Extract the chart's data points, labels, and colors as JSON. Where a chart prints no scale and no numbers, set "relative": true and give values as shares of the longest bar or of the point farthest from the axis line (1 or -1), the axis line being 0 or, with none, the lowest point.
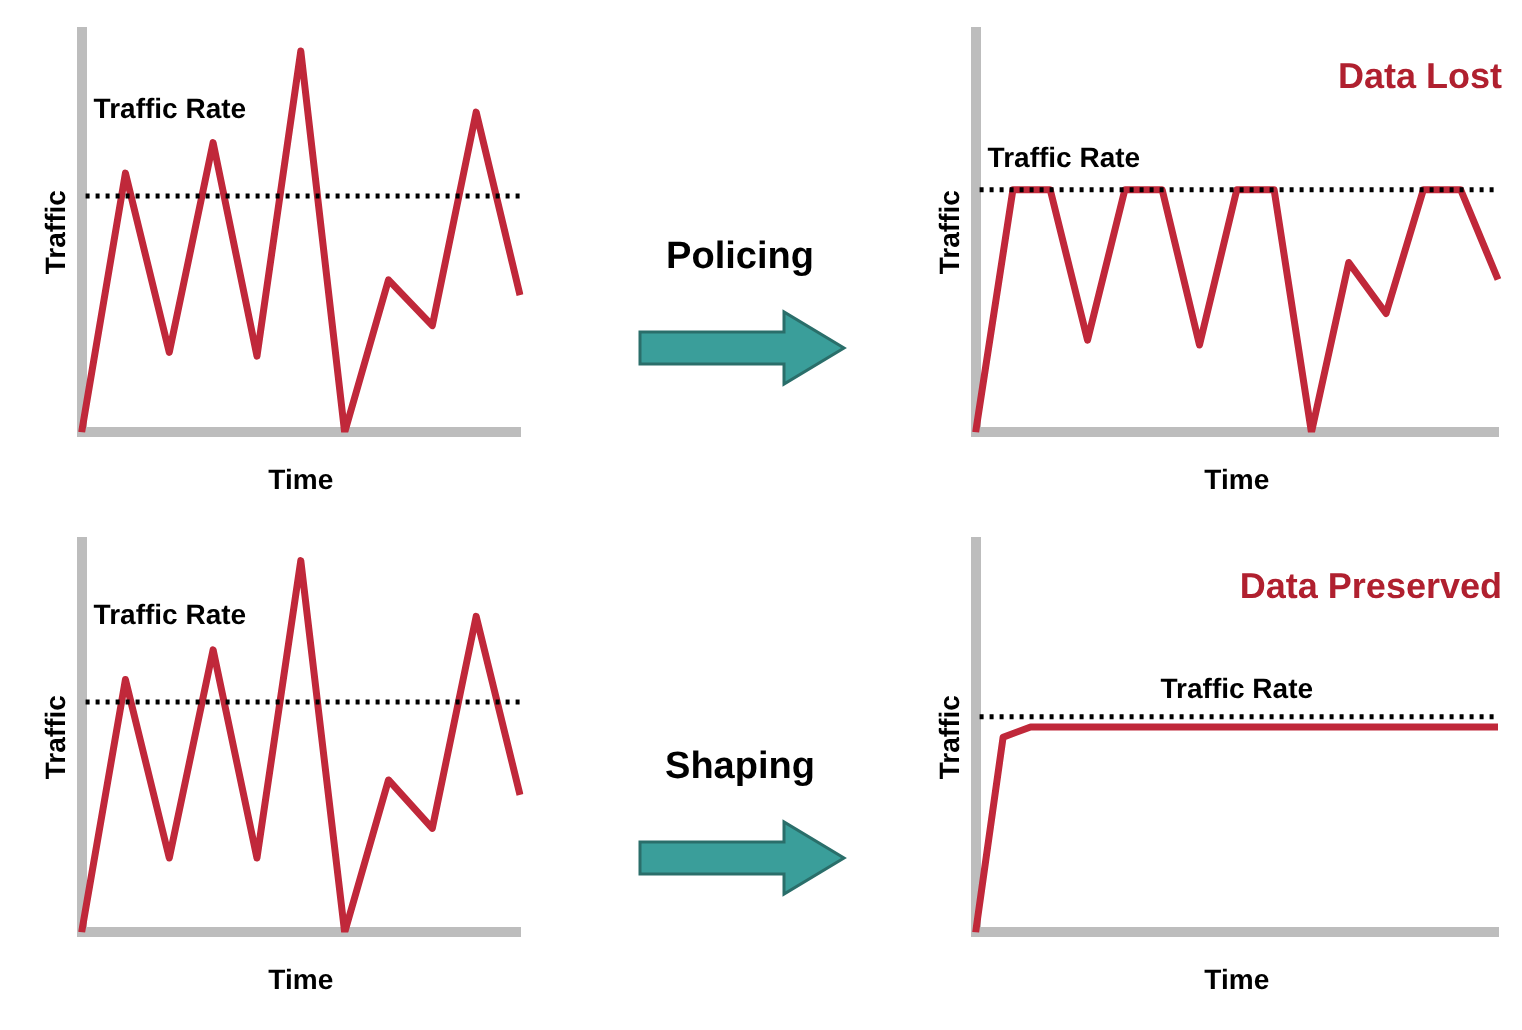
{
  "chart_data": [
    {
      "type": "line",
      "relative": true,
      "ylabel": "Traffic",
      "xlabel": "Time",
      "legend": false,
      "grid": false,
      "marker": "none",
      "categories": [
        null,
        null,
        null,
        null,
        null,
        null,
        null,
        null,
        null,
        null,
        null
      ],
      "series": [
        {
          "color": "#c0283a",
          "values": [
            0,
            0.68,
            0.21,
            0.76,
            0.2,
            1,
            0,
            0.4,
            0.28,
            0.84,
            0.36
          ]
        }
      ],
      "ref_lines": [
        {
          "axis": "y",
          "value": 0.62,
          "label": "Traffic Rate",
          "color": "#000000",
          "line_style": "dotted"
        }
      ]
    },
    {
      "type": "other",
      "title": "Policing"
    },
    {
      "type": "line",
      "relative": true,
      "ylabel": "Traffic",
      "xlabel": "Time",
      "legend": false,
      "grid": false,
      "marker": "none",
      "annotations": [
        "Data Lost"
      ],
      "categories": [
        null,
        null,
        null,
        null,
        null,
        null,
        null,
        null,
        null,
        null,
        null,
        null,
        null,
        null,
        null
      ],
      "series": [
        {
          "color": "#c0283a",
          "values": [
            0,
            1,
            1,
            0.38,
            1,
            1,
            0.36,
            1,
            1,
            0,
            0.7,
            0.49,
            1,
            1,
            0.63
          ]
        }
      ],
      "ref_lines": [
        {
          "axis": "y",
          "value": 1,
          "label": "Traffic Rate",
          "color": "#000000",
          "line_style": "dotted"
        }
      ]
    },
    {
      "type": "line",
      "relative": true,
      "ylabel": "Traffic",
      "xlabel": "Time",
      "legend": false,
      "grid": false,
      "marker": "none",
      "categories": [
        null,
        null,
        null,
        null,
        null,
        null,
        null,
        null,
        null,
        null,
        null
      ],
      "series": [
        {
          "color": "#c0283a",
          "values": [
            0,
            0.68,
            0.2,
            0.76,
            0.2,
            1,
            0,
            0.41,
            0.28,
            0.85,
            0.37
          ]
        }
      ],
      "ref_lines": [
        {
          "axis": "y",
          "value": 0.62,
          "label": "Traffic Rate",
          "color": "#000000",
          "line_style": "dotted"
        }
      ]
    },
    {
      "type": "other",
      "title": "Shaping"
    },
    {
      "type": "line",
      "relative": true,
      "ylabel": "Traffic",
      "xlabel": "Time",
      "legend": false,
      "grid": false,
      "marker": "none",
      "annotations": [
        "Data Preserved"
      ],
      "categories": [
        null,
        null,
        null,
        null,
        null,
        null,
        null,
        null,
        null,
        null,
        null,
        null,
        null,
        null,
        null,
        null,
        null,
        null,
        null,
        null
      ],
      "series": [
        {
          "color": "#c0283a",
          "values": [
            0,
            0.95,
            1,
            1,
            1,
            1,
            1,
            1,
            1,
            1,
            1,
            1,
            1,
            1,
            1,
            1,
            1,
            1,
            1,
            1
          ]
        }
      ],
      "ref_lines": [
        {
          "axis": "y",
          "value": 1.05,
          "label": "Traffic Rate",
          "color": "#000000",
          "line_style": "dotted"
        }
      ]
    }
  ]
}
